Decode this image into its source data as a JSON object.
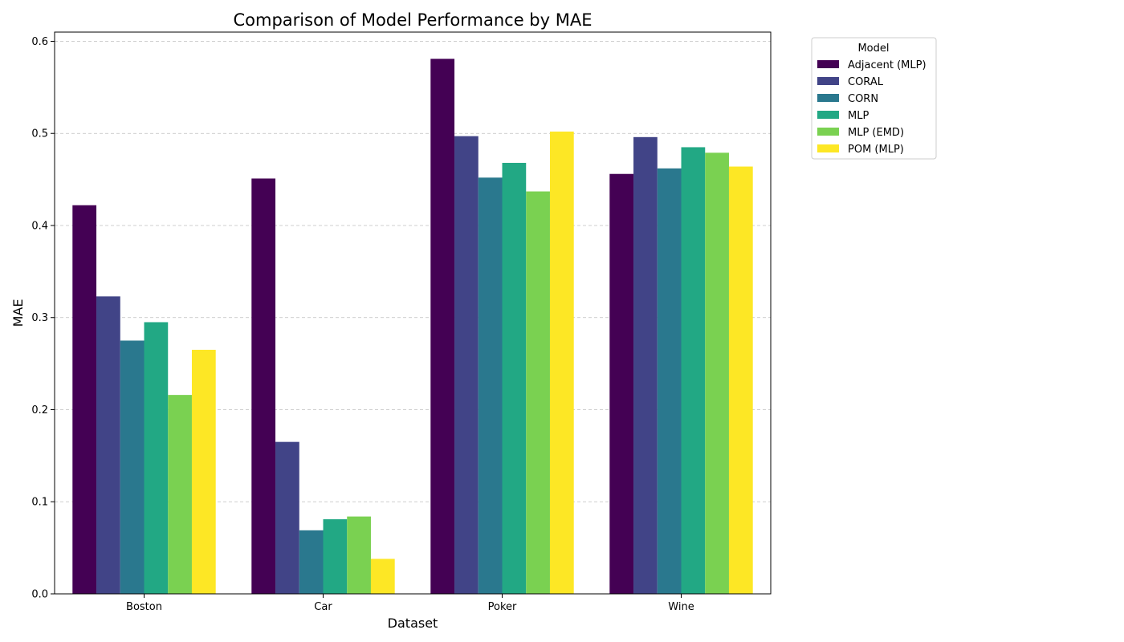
{
  "chart_data": {
    "type": "bar",
    "title": "Comparison of Model Performance by MAE",
    "xlabel": "Dataset",
    "ylabel": "MAE",
    "categories": [
      "Boston",
      "Car",
      "Poker",
      "Wine"
    ],
    "ylim": [
      0,
      0.61
    ],
    "yticks": [
      "0.0",
      "0.1",
      "0.2",
      "0.3",
      "0.4",
      "0.5",
      "0.6"
    ],
    "grid": "y-dashed",
    "legend": {
      "title": "Model",
      "placement": "outside-top-right"
    },
    "series": [
      {
        "name": "Adjacent (MLP)",
        "color": "#440154",
        "values": [
          0.422,
          0.451,
          0.581,
          0.456
        ]
      },
      {
        "name": "CORAL",
        "color": "#414487",
        "values": [
          0.323,
          0.165,
          0.497,
          0.496
        ]
      },
      {
        "name": "CORN",
        "color": "#2a788e",
        "values": [
          0.275,
          0.069,
          0.452,
          0.462
        ]
      },
      {
        "name": "MLP",
        "color": "#22a884",
        "values": [
          0.295,
          0.081,
          0.468,
          0.485
        ]
      },
      {
        "name": "MLP (EMD)",
        "color": "#7ad151",
        "values": [
          0.216,
          0.084,
          0.437,
          0.479
        ]
      },
      {
        "name": "POM (MLP)",
        "color": "#fde725",
        "values": [
          0.265,
          0.038,
          0.502,
          0.464
        ]
      }
    ]
  }
}
